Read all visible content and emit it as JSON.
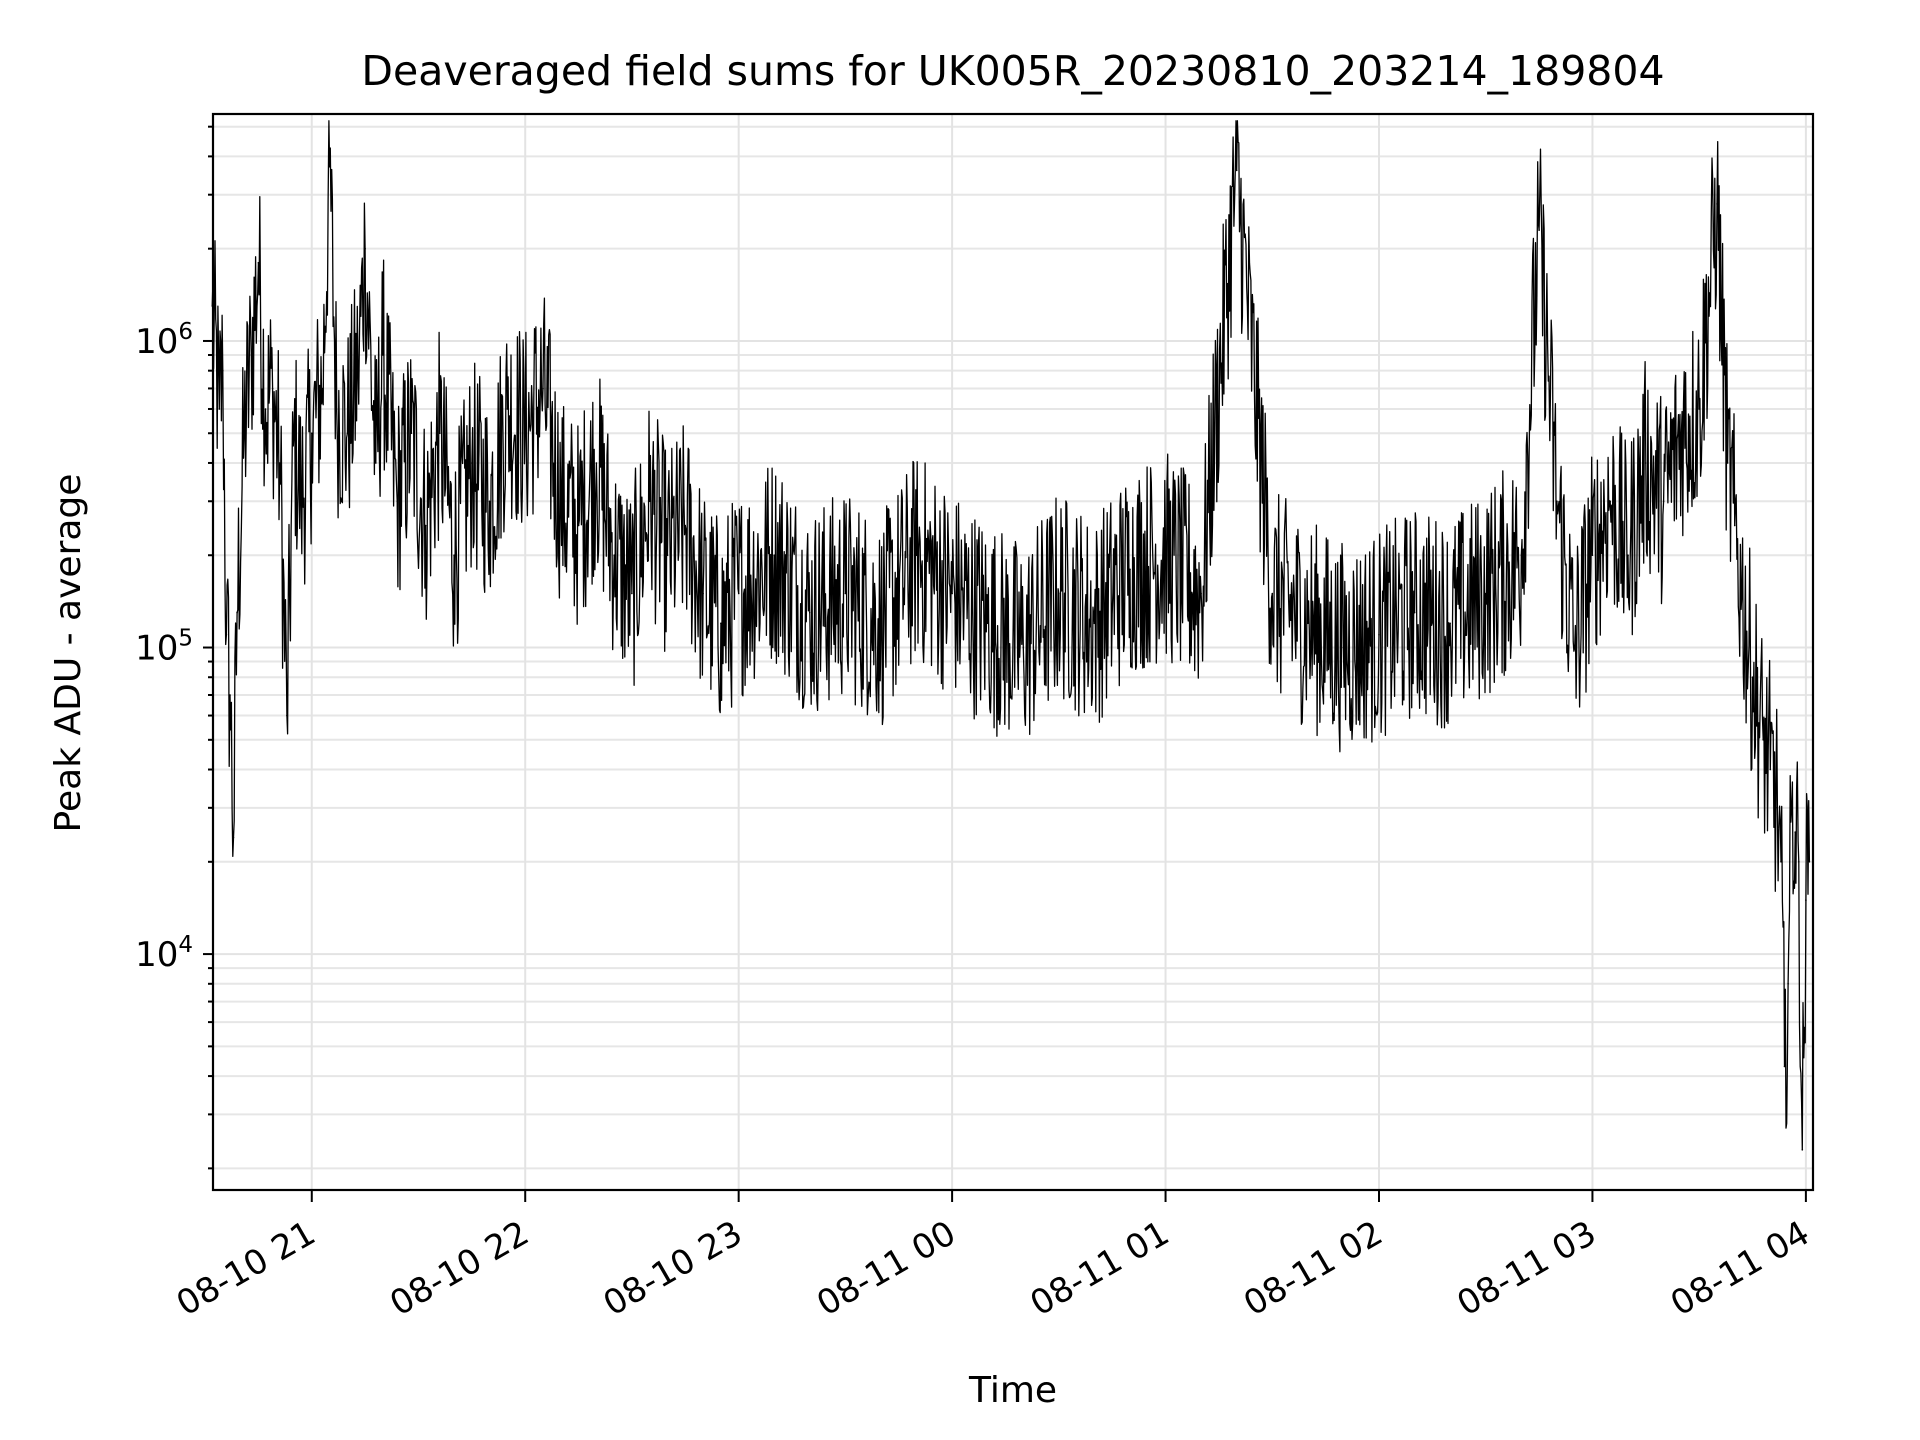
{
  "chart_data": {
    "type": "line",
    "title": "Deaveraged field sums for UK005R_20230810_203214_189804",
    "xlabel": "Time",
    "ylabel": "Peak ADU - average",
    "yscale": "log",
    "ylim": [
      1700,
      5500000
    ],
    "xlim": [
      "2023-08-10 20:32:14",
      "2023-08-11 04:02:00"
    ],
    "grid": true,
    "xticks": [
      "08-10 21",
      "08-10 22",
      "08-10 23",
      "08-11 00",
      "08-11 01",
      "08-11 02",
      "08-11 03",
      "08-11 04"
    ],
    "yticks": [
      {
        "base": "10",
        "exp": "4",
        "value": 10000
      },
      {
        "base": "10",
        "exp": "5",
        "value": 100000
      },
      {
        "base": "10",
        "exp": "6",
        "value": 1000000
      }
    ],
    "series": [
      {
        "color": "#000000",
        "points": [
          [
            "2023-08-10 20:32",
            1300000
          ],
          [
            "2023-08-10 20:34",
            600000
          ],
          [
            "2023-08-10 20:35",
            800000
          ],
          [
            "2023-08-10 20:36",
            110000
          ],
          [
            "2023-08-10 20:37",
            70000
          ],
          [
            "2023-08-10 20:38",
            24000
          ],
          [
            "2023-08-10 20:39",
            130000
          ],
          [
            "2023-08-10 20:41",
            500000
          ],
          [
            "2023-08-10 20:43",
            900000
          ],
          [
            "2023-08-10 20:45",
            1800000
          ],
          [
            "2023-08-10 20:47",
            600000
          ],
          [
            "2023-08-10 20:49",
            700000
          ],
          [
            "2023-08-10 20:51",
            400000
          ],
          [
            "2023-08-10 20:53",
            60000
          ],
          [
            "2023-08-10 20:55",
            500000
          ],
          [
            "2023-08-10 20:57",
            300000
          ],
          [
            "2023-08-10 21:00",
            500000
          ],
          [
            "2023-08-10 21:03",
            700000
          ],
          [
            "2023-08-10 21:05",
            3700000
          ],
          [
            "2023-08-10 21:07",
            600000
          ],
          [
            "2023-08-10 21:10",
            500000
          ],
          [
            "2023-08-10 21:13",
            800000
          ],
          [
            "2023-08-10 21:15",
            2000000
          ],
          [
            "2023-08-10 21:18",
            400000
          ],
          [
            "2023-08-10 21:20",
            900000
          ],
          [
            "2023-08-10 21:24",
            300000
          ],
          [
            "2023-08-10 21:28",
            500000
          ],
          [
            "2023-08-10 21:32",
            250000
          ],
          [
            "2023-08-10 21:36",
            500000
          ],
          [
            "2023-08-10 21:40",
            200000
          ],
          [
            "2023-08-10 21:45",
            400000
          ],
          [
            "2023-08-10 21:50",
            300000
          ],
          [
            "2023-08-10 21:55",
            600000
          ],
          [
            "2023-08-10 22:00",
            500000
          ],
          [
            "2023-08-10 22:05",
            700000
          ],
          [
            "2023-08-10 22:10",
            300000
          ],
          [
            "2023-08-10 22:15",
            250000
          ],
          [
            "2023-08-10 22:20",
            400000
          ],
          [
            "2023-08-10 22:25",
            200000
          ],
          [
            "2023-08-10 22:30",
            150000
          ],
          [
            "2023-08-10 22:35",
            300000
          ],
          [
            "2023-08-10 22:40",
            200000
          ],
          [
            "2023-08-10 22:45",
            250000
          ],
          [
            "2023-08-10 22:50",
            150000
          ],
          [
            "2023-08-10 22:55",
            120000
          ],
          [
            "2023-08-10 23:00",
            150000
          ],
          [
            "2023-08-10 23:10",
            200000
          ],
          [
            "2023-08-10 23:20",
            130000
          ],
          [
            "2023-08-10 23:30",
            150000
          ],
          [
            "2023-08-10 23:40",
            120000
          ],
          [
            "2023-08-10 23:50",
            200000
          ],
          [
            "2023-08-11 00:00",
            150000
          ],
          [
            "2023-08-11 00:10",
            120000
          ],
          [
            "2023-08-11 00:20",
            100000
          ],
          [
            "2023-08-11 00:30",
            150000
          ],
          [
            "2023-08-11 00:40",
            120000
          ],
          [
            "2023-08-11 00:50",
            180000
          ],
          [
            "2023-08-11 01:00",
            200000
          ],
          [
            "2023-08-11 01:10",
            150000
          ],
          [
            "2023-08-11 01:20",
            3600000
          ],
          [
            "2023-08-11 01:30",
            150000
          ],
          [
            "2023-08-11 01:40",
            120000
          ],
          [
            "2023-08-11 01:50",
            100000
          ],
          [
            "2023-08-11 02:00",
            110000
          ],
          [
            "2023-08-11 02:10",
            130000
          ],
          [
            "2023-08-11 02:20",
            120000
          ],
          [
            "2023-08-11 02:30",
            150000
          ],
          [
            "2023-08-11 02:40",
            200000
          ],
          [
            "2023-08-11 02:45",
            2300000
          ],
          [
            "2023-08-11 02:50",
            300000
          ],
          [
            "2023-08-11 02:55",
            100000
          ],
          [
            "2023-08-11 03:00",
            200000
          ],
          [
            "2023-08-11 03:05",
            300000
          ],
          [
            "2023-08-11 03:10",
            200000
          ],
          [
            "2023-08-11 03:15",
            400000
          ],
          [
            "2023-08-11 03:20",
            300000
          ],
          [
            "2023-08-11 03:25",
            500000
          ],
          [
            "2023-08-11 03:30",
            600000
          ],
          [
            "2023-08-11 03:35",
            2800000
          ],
          [
            "2023-08-11 03:38",
            400000
          ],
          [
            "2023-08-11 03:40",
            250000
          ],
          [
            "2023-08-11 03:42",
            150000
          ],
          [
            "2023-08-11 03:45",
            80000
          ],
          [
            "2023-08-11 03:48",
            50000
          ],
          [
            "2023-08-11 03:50",
            40000
          ],
          [
            "2023-08-11 03:52",
            30000
          ],
          [
            "2023-08-11 03:53",
            20000
          ],
          [
            "2023-08-11 03:54",
            4300
          ],
          [
            "2023-08-11 03:55",
            8000
          ],
          [
            "2023-08-11 03:56",
            30000
          ],
          [
            "2023-08-11 03:57",
            25000
          ],
          [
            "2023-08-11 03:58",
            20000
          ],
          [
            "2023-08-11 03:59",
            2300
          ],
          [
            "2023-08-11 04:00",
            15000
          ],
          [
            "2023-08-11 04:01",
            20000
          ]
        ]
      }
    ]
  }
}
